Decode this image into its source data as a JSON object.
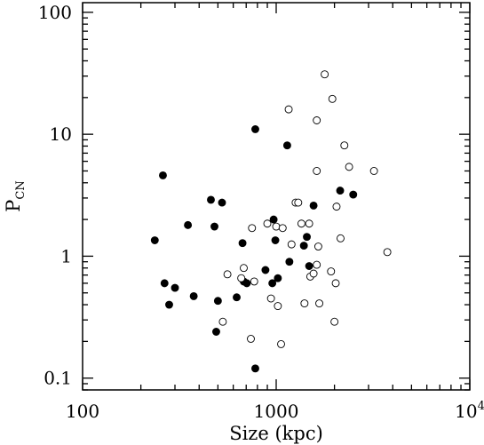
{
  "chart_data": {
    "type": "scatter",
    "xlabel": "Size (kpc)",
    "ylabel": "P",
    "ylabel_subscript": "CN",
    "x_scale": "log",
    "y_scale": "log",
    "xlim": [
      100,
      10000
    ],
    "ylim": [
      0.08,
      120
    ],
    "grid": false,
    "x_ticks": [
      {
        "value": 100,
        "label": "100"
      },
      {
        "value": 1000,
        "label": "1000"
      },
      {
        "value": 10000,
        "label": "10",
        "sup": "4"
      }
    ],
    "y_ticks": [
      {
        "value": 0.1,
        "label": "0.1"
      },
      {
        "value": 1,
        "label": "1"
      },
      {
        "value": 10,
        "label": "10"
      },
      {
        "value": 100,
        "label": "100"
      }
    ],
    "series": [
      {
        "marker": "filled-circle",
        "color": "#000000",
        "points": [
          [
            236,
            1.35
          ],
          [
            260,
            4.6
          ],
          [
            265,
            0.6
          ],
          [
            280,
            0.4
          ],
          [
            300,
            0.55
          ],
          [
            350,
            1.8
          ],
          [
            375,
            0.47
          ],
          [
            460,
            2.9
          ],
          [
            480,
            1.75
          ],
          [
            490,
            0.24
          ],
          [
            500,
            0.43
          ],
          [
            525,
            2.75
          ],
          [
            625,
            0.46
          ],
          [
            670,
            1.28
          ],
          [
            680,
            0.62
          ],
          [
            705,
            0.6
          ],
          [
            780,
            0.12
          ],
          [
            780,
            11.0
          ],
          [
            880,
            0.77
          ],
          [
            955,
            0.6
          ],
          [
            970,
            2.0
          ],
          [
            990,
            1.35
          ],
          [
            1020,
            0.66
          ],
          [
            1140,
            8.1
          ],
          [
            1170,
            0.9
          ],
          [
            1390,
            1.22
          ],
          [
            1440,
            1.44
          ],
          [
            1480,
            0.83
          ],
          [
            1560,
            2.6
          ],
          [
            2140,
            3.45
          ],
          [
            2500,
            3.2
          ]
        ]
      },
      {
        "marker": "open-circle",
        "color": "#000000",
        "points": [
          [
            530,
            0.29
          ],
          [
            560,
            0.71
          ],
          [
            660,
            0.66
          ],
          [
            680,
            0.8
          ],
          [
            740,
            0.21
          ],
          [
            750,
            1.7
          ],
          [
            770,
            0.62
          ],
          [
            900,
            1.85
          ],
          [
            940,
            0.45
          ],
          [
            1000,
            1.75
          ],
          [
            1020,
            0.39
          ],
          [
            1060,
            0.19
          ],
          [
            1080,
            1.7
          ],
          [
            1160,
            16.0
          ],
          [
            1200,
            1.25
          ],
          [
            1260,
            2.75
          ],
          [
            1300,
            2.75
          ],
          [
            1350,
            1.85
          ],
          [
            1400,
            0.41
          ],
          [
            1480,
            1.85
          ],
          [
            1500,
            0.68
          ],
          [
            1560,
            0.72
          ],
          [
            1620,
            0.85
          ],
          [
            1620,
            5.0
          ],
          [
            1620,
            13.0
          ],
          [
            1650,
            1.2
          ],
          [
            1670,
            0.41
          ],
          [
            1780,
            31.0
          ],
          [
            1920,
            0.75
          ],
          [
            1950,
            19.5
          ],
          [
            2000,
            0.29
          ],
          [
            2030,
            0.6
          ],
          [
            2050,
            2.55
          ],
          [
            2150,
            1.4
          ],
          [
            2250,
            8.1
          ],
          [
            2380,
            5.4
          ],
          [
            3200,
            5.0
          ],
          [
            3750,
            1.08
          ]
        ]
      }
    ]
  }
}
